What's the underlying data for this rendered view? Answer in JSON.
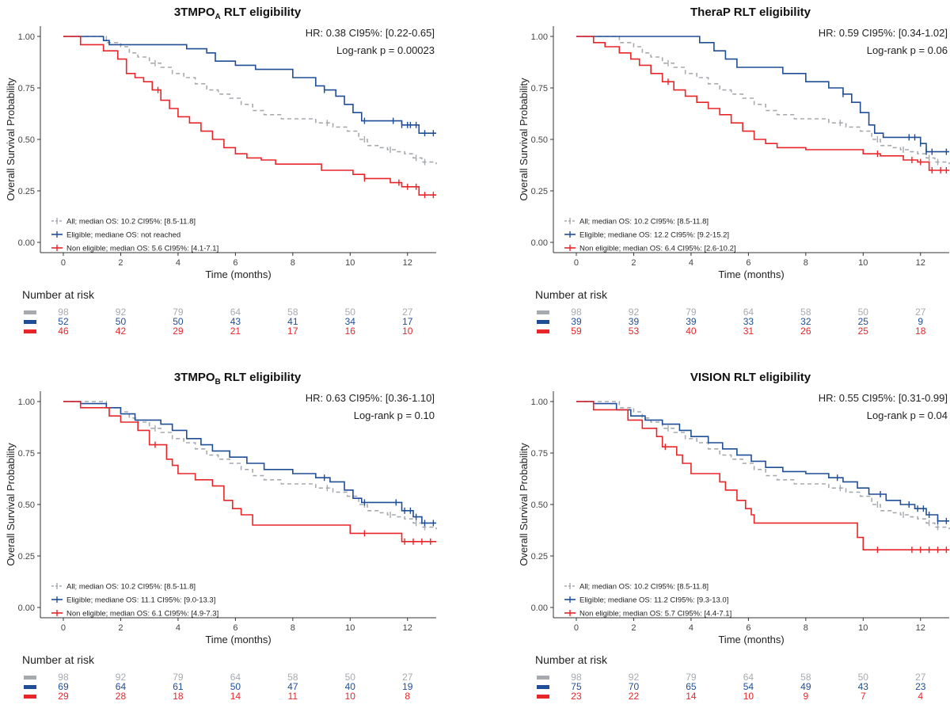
{
  "colors": {
    "all": "#a6aaaf",
    "eligible": "#1f4e96",
    "non_eligible": "#e8262a",
    "axis": "#333333"
  },
  "chart_data": [
    {
      "type": "line",
      "title": "3TMPO",
      "title_sub": "A",
      "title_suffix": " RLT eligibility",
      "xlabel": "Time (months)",
      "ylabel": "Overall Survival Probability",
      "xlim": [
        -0.8,
        13
      ],
      "ylim": [
        -0.05,
        1.05
      ],
      "xticks": [
        "0",
        "2",
        "4",
        "6",
        "8",
        "10",
        "12"
      ],
      "yticks": [
        "0.00",
        "0.25",
        "0.50",
        "0.75",
        "1.00"
      ],
      "hr_text": "HR: 0.38 CI95%: [0.22-0.65]",
      "p_text": "Log-rank p = 0.00023",
      "risk_title": "Number at risk",
      "series": [
        {
          "name": "All; median OS: 10.2 CI95%: [8.5-11.8]",
          "key": "all",
          "x": [
            0,
            1.5,
            2.0,
            2.3,
            2.6,
            3.0,
            3.4,
            3.8,
            4.2,
            4.6,
            5.0,
            5.4,
            5.8,
            6.2,
            6.6,
            7.0,
            7.6,
            8.2,
            8.8,
            9.4,
            9.9,
            10.3,
            10.6,
            11.0,
            11.3,
            11.6,
            11.9,
            12.2,
            12.5,
            13
          ],
          "y": [
            1.0,
            0.97,
            0.95,
            0.92,
            0.9,
            0.87,
            0.85,
            0.82,
            0.8,
            0.77,
            0.74,
            0.72,
            0.7,
            0.67,
            0.64,
            0.62,
            0.6,
            0.6,
            0.58,
            0.56,
            0.54,
            0.5,
            0.47,
            0.46,
            0.45,
            0.44,
            0.43,
            0.41,
            0.39,
            0.38
          ],
          "censor": [
            3.2,
            9.2,
            10.5,
            11.4,
            12.3,
            12.6
          ]
        },
        {
          "name": "Eligible; mediane OS: not reached",
          "key": "eligible",
          "x": [
            0,
            1.4,
            1.6,
            3.5,
            4.3,
            5.0,
            5.3,
            6.0,
            6.7,
            8.0,
            8.8,
            9.1,
            9.5,
            9.8,
            10.1,
            10.4,
            11.2,
            11.8,
            12.2,
            12.4,
            13
          ],
          "y": [
            1.0,
            0.98,
            0.96,
            0.96,
            0.94,
            0.92,
            0.88,
            0.86,
            0.84,
            0.8,
            0.76,
            0.74,
            0.71,
            0.67,
            0.63,
            0.59,
            0.59,
            0.57,
            0.57,
            0.53,
            0.53
          ],
          "censor": [
            9.1,
            10.5,
            11.5,
            11.8,
            12.0,
            12.1,
            12.3,
            12.6,
            12.9
          ]
        },
        {
          "name": "Non eligible; median OS: 5.6 CI95%: [4.1-7.1]",
          "key": "non_eligible",
          "x": [
            0,
            0.6,
            1.4,
            1.9,
            2.2,
            2.5,
            2.8,
            3.1,
            3.4,
            3.7,
            4.0,
            4.4,
            4.8,
            5.2,
            5.6,
            6.0,
            6.4,
            6.9,
            7.4,
            9.0,
            10.1,
            10.5,
            11.4,
            11.8,
            12.4,
            13
          ],
          "y": [
            1.0,
            0.96,
            0.93,
            0.89,
            0.82,
            0.8,
            0.78,
            0.74,
            0.69,
            0.65,
            0.61,
            0.58,
            0.54,
            0.5,
            0.46,
            0.43,
            0.41,
            0.4,
            0.38,
            0.35,
            0.33,
            0.31,
            0.29,
            0.27,
            0.23,
            0.23
          ],
          "censor": [
            3.3,
            10.5,
            11.7,
            12.0,
            12.3,
            12.6,
            12.9
          ]
        }
      ],
      "risk": {
        "all": [
          "98",
          "92",
          "79",
          "64",
          "58",
          "50",
          "27"
        ],
        "eligible": [
          "52",
          "50",
          "50",
          "43",
          "41",
          "34",
          "17"
        ],
        "non_eligible": [
          "46",
          "42",
          "29",
          "21",
          "17",
          "16",
          "10"
        ]
      }
    },
    {
      "type": "line",
      "title": "TheraP RLT eligibility",
      "title_sub": "",
      "title_suffix": "",
      "xlabel": "Time (months)",
      "ylabel": "Overall Survival Probability",
      "xlim": [
        -0.8,
        13
      ],
      "ylim": [
        -0.05,
        1.05
      ],
      "xticks": [
        "0",
        "2",
        "4",
        "6",
        "8",
        "10",
        "12"
      ],
      "yticks": [
        "0.00",
        "0.25",
        "0.50",
        "0.75",
        "1.00"
      ],
      "hr_text": "HR: 0.59 CI95%: [0.34-1.02]",
      "p_text": "Log-rank p = 0.06",
      "risk_title": "Number at risk",
      "series": [
        {
          "name": "All; median OS: 10.2 CI95%: [8.5-11.8]",
          "key": "all",
          "x": [
            0,
            1.5,
            2.0,
            2.3,
            2.6,
            3.0,
            3.4,
            3.8,
            4.2,
            4.6,
            5.0,
            5.4,
            5.8,
            6.2,
            6.6,
            7.0,
            7.6,
            8.2,
            8.8,
            9.4,
            9.9,
            10.3,
            10.6,
            11.0,
            11.3,
            11.6,
            11.9,
            12.2,
            12.5,
            13
          ],
          "y": [
            1.0,
            0.97,
            0.95,
            0.92,
            0.9,
            0.87,
            0.85,
            0.82,
            0.8,
            0.77,
            0.74,
            0.72,
            0.7,
            0.67,
            0.64,
            0.62,
            0.6,
            0.6,
            0.58,
            0.56,
            0.54,
            0.5,
            0.47,
            0.46,
            0.45,
            0.44,
            0.43,
            0.41,
            0.39,
            0.38
          ],
          "censor": [
            3.2,
            9.2,
            10.5,
            11.4,
            12.3,
            12.6
          ]
        },
        {
          "name": "Eligible; mediane OS: 12.2 CI95%: [9.2-15.2]",
          "key": "eligible",
          "x": [
            0,
            4.3,
            4.8,
            5.2,
            5.6,
            6.2,
            7.2,
            8.0,
            8.8,
            9.3,
            9.6,
            9.9,
            10.2,
            10.4,
            10.7,
            11.3,
            12.0,
            12.2,
            13
          ],
          "y": [
            1.0,
            0.97,
            0.93,
            0.89,
            0.85,
            0.85,
            0.82,
            0.78,
            0.75,
            0.72,
            0.68,
            0.63,
            0.57,
            0.53,
            0.51,
            0.51,
            0.48,
            0.44,
            0.44
          ],
          "censor": [
            9.3,
            11.6,
            11.8,
            12.0,
            12.2,
            12.4,
            12.9
          ]
        },
        {
          "name": "Non eligible; median OS: 6.4 CI95%: [2.6-10.2]",
          "key": "non_eligible",
          "x": [
            0,
            0.6,
            1.0,
            1.5,
            1.9,
            2.2,
            2.6,
            3.0,
            3.4,
            3.8,
            4.2,
            4.6,
            5.0,
            5.4,
            5.8,
            6.2,
            6.6,
            7.0,
            8.0,
            9.2,
            10.0,
            10.6,
            11.4,
            11.9,
            12.3,
            13
          ],
          "y": [
            1.0,
            0.97,
            0.95,
            0.92,
            0.89,
            0.86,
            0.82,
            0.78,
            0.74,
            0.71,
            0.68,
            0.65,
            0.62,
            0.58,
            0.54,
            0.5,
            0.48,
            0.46,
            0.45,
            0.45,
            0.43,
            0.42,
            0.4,
            0.39,
            0.35,
            0.35
          ],
          "censor": [
            3.2,
            10.5,
            11.7,
            12.0,
            12.4,
            12.7,
            12.9
          ]
        }
      ],
      "risk": {
        "all": [
          "98",
          "92",
          "79",
          "64",
          "58",
          "50",
          "27"
        ],
        "eligible": [
          "39",
          "39",
          "39",
          "33",
          "32",
          "25",
          "9"
        ],
        "non_eligible": [
          "59",
          "53",
          "40",
          "31",
          "26",
          "25",
          "18"
        ]
      }
    },
    {
      "type": "line",
      "title": "3TMPO",
      "title_sub": "B",
      "title_suffix": " RLT eligibility",
      "xlabel": "Time (months)",
      "ylabel": "Overall Survival Probability",
      "xlim": [
        -0.8,
        13
      ],
      "ylim": [
        -0.05,
        1.05
      ],
      "xticks": [
        "0",
        "2",
        "4",
        "6",
        "8",
        "10",
        "12"
      ],
      "yticks": [
        "0.00",
        "0.25",
        "0.50",
        "0.75",
        "1.00"
      ],
      "hr_text": "HR: 0.63 CI95%: [0.36-1.10]",
      "p_text": "Log-rank p = 0.10",
      "risk_title": "Number at risk",
      "series": [
        {
          "name": "All; median OS: 10.2 CI95%: [8.5-11.8]",
          "key": "all",
          "x": [
            0,
            1.5,
            2.0,
            2.3,
            2.6,
            3.0,
            3.4,
            3.8,
            4.2,
            4.6,
            5.0,
            5.4,
            5.8,
            6.2,
            6.6,
            7.0,
            7.6,
            8.2,
            8.8,
            9.4,
            9.9,
            10.3,
            10.6,
            11.0,
            11.3,
            11.6,
            11.9,
            12.2,
            12.5,
            13
          ],
          "y": [
            1.0,
            0.97,
            0.95,
            0.92,
            0.9,
            0.87,
            0.85,
            0.82,
            0.8,
            0.77,
            0.74,
            0.72,
            0.7,
            0.67,
            0.64,
            0.62,
            0.6,
            0.6,
            0.58,
            0.56,
            0.54,
            0.5,
            0.47,
            0.46,
            0.45,
            0.44,
            0.43,
            0.41,
            0.39,
            0.38
          ],
          "censor": [
            3.2,
            9.2,
            10.5,
            11.4,
            12.3,
            12.6
          ]
        },
        {
          "name": "Eligible; mediane OS: 11.1 CI95%: [9.0-13.3]",
          "key": "eligible",
          "x": [
            0,
            0.6,
            1.5,
            2.0,
            2.5,
            3.4,
            3.8,
            4.3,
            4.8,
            5.2,
            5.8,
            6.4,
            7.0,
            8.0,
            8.8,
            9.3,
            9.8,
            10.1,
            10.4,
            11.2,
            11.8,
            12.2,
            12.5,
            13
          ],
          "y": [
            1.0,
            0.99,
            0.97,
            0.94,
            0.91,
            0.89,
            0.86,
            0.82,
            0.79,
            0.76,
            0.73,
            0.7,
            0.67,
            0.65,
            0.63,
            0.61,
            0.57,
            0.53,
            0.51,
            0.51,
            0.47,
            0.44,
            0.41,
            0.41
          ],
          "censor": [
            9.1,
            10.5,
            11.6,
            11.9,
            12.1,
            12.3,
            12.6,
            12.9
          ]
        },
        {
          "name": "Non eligible; median OS: 6.1 CI95%: [4.9-7.3]",
          "key": "non_eligible",
          "x": [
            0,
            0.6,
            1.3,
            1.6,
            2.0,
            2.6,
            3.0,
            3.4,
            3.6,
            3.8,
            4.0,
            4.6,
            5.2,
            5.6,
            5.9,
            6.2,
            6.6,
            9.2,
            10.0,
            11.8,
            13
          ],
          "y": [
            1.0,
            0.97,
            0.97,
            0.93,
            0.9,
            0.86,
            0.79,
            0.79,
            0.72,
            0.69,
            0.65,
            0.62,
            0.59,
            0.52,
            0.48,
            0.45,
            0.4,
            0.4,
            0.36,
            0.32,
            0.32
          ],
          "censor": [
            3.2,
            10.5,
            11.9,
            12.2,
            12.5,
            12.8
          ]
        }
      ],
      "risk": {
        "all": [
          "98",
          "92",
          "79",
          "64",
          "58",
          "50",
          "27"
        ],
        "eligible": [
          "69",
          "64",
          "61",
          "50",
          "47",
          "40",
          "19"
        ],
        "non_eligible": [
          "29",
          "28",
          "18",
          "14",
          "11",
          "10",
          "8"
        ]
      }
    },
    {
      "type": "line",
      "title": "VISION RLT eligibility",
      "title_sub": "",
      "title_suffix": "",
      "xlabel": "Time (months)",
      "ylabel": "Overall Survival Probability",
      "xlim": [
        -0.8,
        13
      ],
      "ylim": [
        -0.05,
        1.05
      ],
      "xticks": [
        "0",
        "2",
        "4",
        "6",
        "8",
        "10",
        "12"
      ],
      "yticks": [
        "0.00",
        "0.25",
        "0.50",
        "0.75",
        "1.00"
      ],
      "hr_text": "HR: 0.55 CI95%: [0.31-0.99]",
      "p_text": "Log-rank p = 0.04",
      "risk_title": "Number at risk",
      "series": [
        {
          "name": "All; median OS: 10.2 CI95%: [8.5-11.8]",
          "key": "all",
          "x": [
            0,
            1.5,
            2.0,
            2.3,
            2.6,
            3.0,
            3.4,
            3.8,
            4.2,
            4.6,
            5.0,
            5.4,
            5.8,
            6.2,
            6.6,
            7.0,
            7.6,
            8.2,
            8.8,
            9.4,
            9.9,
            10.3,
            10.6,
            11.0,
            11.3,
            11.6,
            11.9,
            12.2,
            12.5,
            13
          ],
          "y": [
            1.0,
            0.97,
            0.95,
            0.92,
            0.9,
            0.87,
            0.85,
            0.82,
            0.8,
            0.77,
            0.74,
            0.72,
            0.7,
            0.67,
            0.64,
            0.62,
            0.6,
            0.6,
            0.58,
            0.56,
            0.54,
            0.5,
            0.47,
            0.46,
            0.45,
            0.44,
            0.43,
            0.41,
            0.39,
            0.38
          ],
          "censor": [
            3.2,
            9.2,
            10.5,
            11.4,
            12.3,
            12.6
          ]
        },
        {
          "name": "Eligible; mediane OS: 11.2 CI95%: [9.3-13.0]",
          "key": "eligible",
          "x": [
            0,
            0.6,
            1.4,
            1.9,
            2.4,
            3.0,
            3.6,
            4.0,
            4.6,
            5.1,
            5.6,
            6.1,
            6.6,
            7.2,
            8.0,
            8.8,
            9.3,
            9.8,
            10.2,
            10.8,
            11.3,
            11.8,
            12.2,
            12.6,
            13
          ],
          "y": [
            1.0,
            0.99,
            0.96,
            0.93,
            0.91,
            0.89,
            0.86,
            0.83,
            0.8,
            0.77,
            0.74,
            0.71,
            0.68,
            0.66,
            0.65,
            0.63,
            0.61,
            0.58,
            0.55,
            0.52,
            0.5,
            0.48,
            0.45,
            0.42,
            0.42
          ],
          "censor": [
            9.1,
            10.6,
            11.6,
            11.9,
            12.1,
            12.3,
            12.6,
            12.9
          ]
        },
        {
          "name": "Non eligible; median OS: 5.7 CI95%: [4.4-7.1]",
          "key": "non_eligible",
          "x": [
            0,
            0.6,
            1.2,
            1.8,
            2.3,
            2.8,
            3.0,
            3.3,
            3.5,
            3.7,
            4.0,
            4.3,
            4.6,
            5.0,
            5.2,
            5.6,
            5.9,
            6.1,
            6.2,
            9.0,
            9.8,
            10.0,
            13
          ],
          "y": [
            1.0,
            0.96,
            0.96,
            0.91,
            0.87,
            0.83,
            0.78,
            0.78,
            0.74,
            0.7,
            0.65,
            0.65,
            0.65,
            0.61,
            0.57,
            0.52,
            0.48,
            0.45,
            0.41,
            0.41,
            0.34,
            0.28,
            0.28
          ],
          "censor": [
            3.1,
            10.5,
            11.7,
            12.0,
            12.3,
            12.6,
            12.9
          ]
        }
      ],
      "risk": {
        "all": [
          "98",
          "92",
          "79",
          "64",
          "58",
          "50",
          "27"
        ],
        "eligible": [
          "75",
          "70",
          "65",
          "54",
          "49",
          "43",
          "23"
        ],
        "non_eligible": [
          "23",
          "22",
          "14",
          "10",
          "9",
          "7",
          "4"
        ]
      }
    }
  ]
}
